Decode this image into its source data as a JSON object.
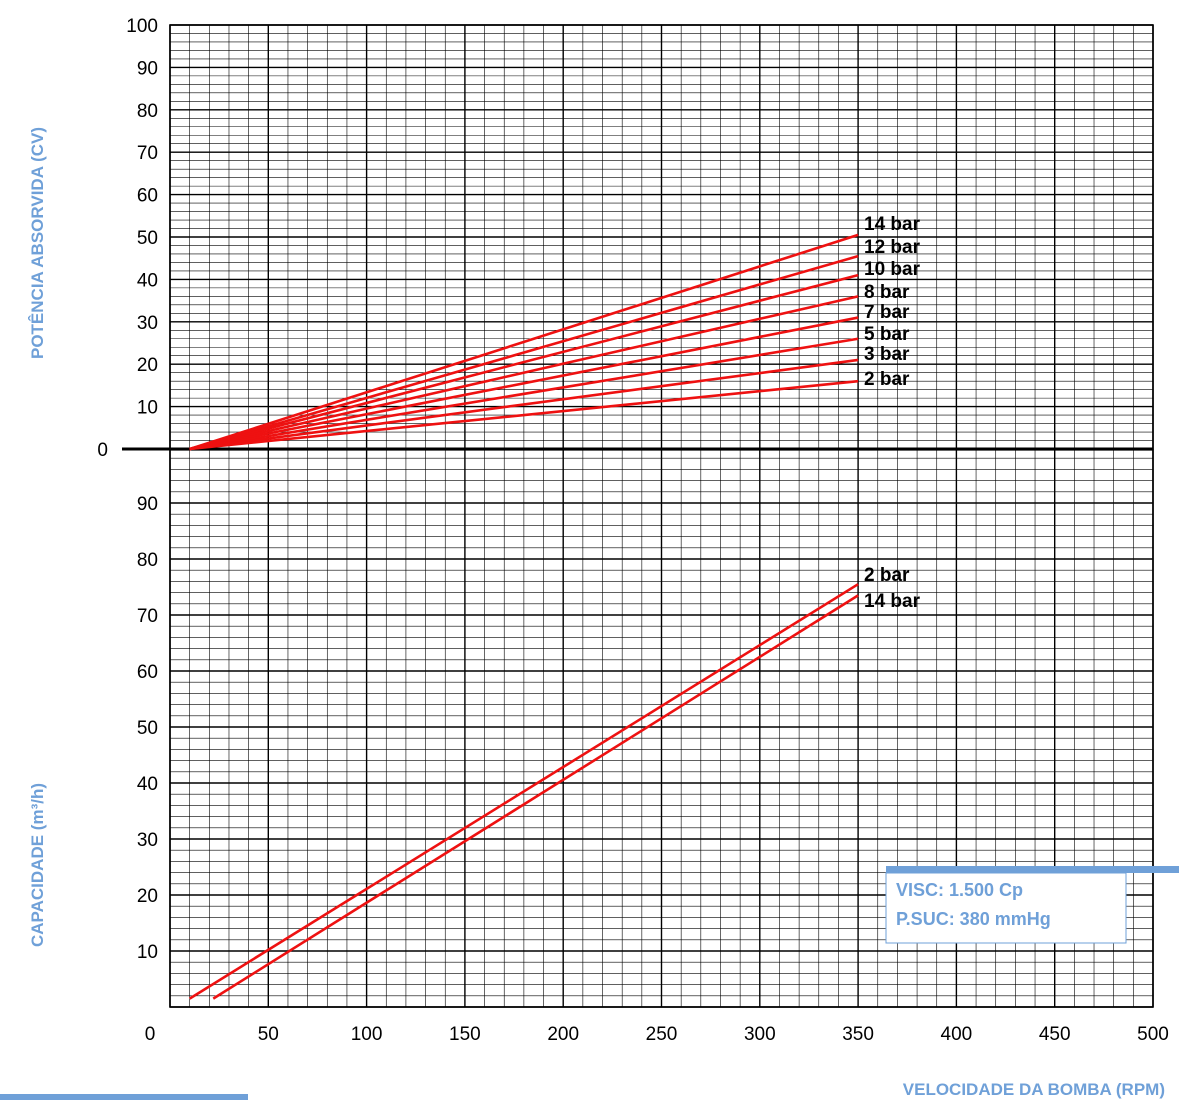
{
  "chart_data": [
    {
      "type": "line",
      "title": "",
      "ylabel": "POTÊNCIA ABSORVIDA (CV)",
      "xlabel": "VELOCIDADE DA BOMBA (RPM)",
      "xlim": [
        0,
        500
      ],
      "ylim": [
        0,
        100
      ],
      "y_ticks": [
        "10",
        "20",
        "30",
        "40",
        "50",
        "60",
        "70",
        "80",
        "90",
        "100"
      ],
      "zero_label": "0",
      "grid": true,
      "series": [
        {
          "name": "14 bar",
          "x": [
            10,
            350
          ],
          "y": [
            0,
            50.5
          ]
        },
        {
          "name": "12 bar",
          "x": [
            10,
            350
          ],
          "y": [
            0,
            45.5
          ]
        },
        {
          "name": "10 bar",
          "x": [
            10,
            350
          ],
          "y": [
            0,
            41
          ]
        },
        {
          "name": "8 bar",
          "x": [
            10,
            350
          ],
          "y": [
            0,
            36
          ]
        },
        {
          "name": "7 bar",
          "x": [
            10,
            350
          ],
          "y": [
            0,
            31
          ]
        },
        {
          "name": "5 bar",
          "x": [
            10,
            350
          ],
          "y": [
            0,
            26
          ]
        },
        {
          "name": "3 bar",
          "x": [
            10,
            350
          ],
          "y": [
            0,
            21
          ]
        },
        {
          "name": "2 bar",
          "x": [
            10,
            350
          ],
          "y": [
            0,
            16
          ]
        }
      ]
    },
    {
      "type": "line",
      "title": "",
      "ylabel": "CAPACIDADE (m³/h)",
      "xlabel": "VELOCIDADE DA BOMBA (RPM)",
      "xlim": [
        0,
        500
      ],
      "ylim": [
        0,
        100
      ],
      "x_ticks": [
        "0",
        "50",
        "100",
        "150",
        "200",
        "250",
        "300",
        "350",
        "400",
        "450",
        "500"
      ],
      "y_ticks": [
        "10",
        "20",
        "30",
        "40",
        "50",
        "60",
        "70",
        "80",
        "90"
      ],
      "grid": true,
      "series": [
        {
          "name": "2 bar",
          "x": [
            10,
            350
          ],
          "y": [
            1.5,
            75.5
          ]
        },
        {
          "name": "14 bar",
          "x": [
            22,
            350
          ],
          "y": [
            1.5,
            73.5
          ]
        }
      ]
    }
  ],
  "annotation": {
    "visc": "VISC: 1.500 Cp",
    "psuc": "P.SUC: 380 mmHg"
  },
  "colors": {
    "curve": "#ee1111",
    "axis_title": "#6fa0d8",
    "grid": "#000000"
  }
}
